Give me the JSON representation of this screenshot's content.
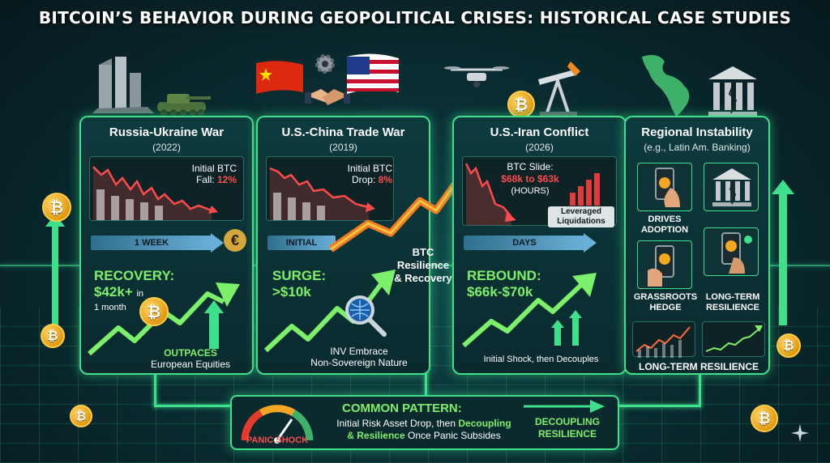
{
  "title": "BITCOIN’S BEHAVIOR DURING GEOPOLITICAL CRISES: HISTORICAL CASE STUDIES",
  "cards": [
    {
      "title": "Russia-Ukraine War",
      "subtitle": "(2022)",
      "drop_label": "Initial BTC",
      "drop_label2": "Fall:",
      "drop_value": "12%",
      "timebar": "1 WEEK",
      "currency_symbol": "€",
      "recovery_title": "RECOVERY:",
      "recovery_value": "$42k+",
      "recovery_in": "in",
      "recovery_period": "1 month",
      "footer_line1": "OUTPACES",
      "footer_line2": "European Equities"
    },
    {
      "title": "U.S.-China Trade War",
      "subtitle": "(2019)",
      "drop_label": "Initial BTC",
      "drop_label2": "Drop:",
      "drop_value": "8%",
      "timebar": "INITIAL",
      "surge_title": "SURGE:",
      "surge_value": ">$10k",
      "footer_line1": "INV Embrace",
      "footer_line2": "Non-Sovereign Nature"
    },
    {
      "title": "U.S.-Iran Conflict",
      "subtitle": "(2026)",
      "slide_label": "BTC Slide:",
      "slide_value": "$68k to $63k",
      "slide_period": "(HOURS)",
      "liq_line1": "Leveraged",
      "liq_line2": "Liquidations",
      "timebar": "DAYS",
      "rebound_title": "REBOUND:",
      "rebound_value": "$66k-$70k",
      "footer": "Initial Shock, then Decouples"
    },
    {
      "title": "Regional Instability",
      "subtitle": "(e.g., Latin Am. Banking)",
      "tiles": [
        "DRIVES ADOPTION",
        "",
        "GRASSROOTS HEDGE",
        "LONG-TERM RESILIENCE"
      ],
      "footer": "LONG-TERM RESILIENCE"
    }
  ],
  "center_label": {
    "line1": "BTC",
    "line2": "Resilience",
    "line3": "& Recovery"
  },
  "bottom": {
    "gauge_label": "PANIC SHOCK",
    "title": "COMMON PATTERN:",
    "text_a": "Initial Risk Asset Drop, then",
    "text_b": "Decoupling",
    "text_c": "& Resilience",
    "text_d": "Once Panic Subsides",
    "right_line1": "DECOUPLING",
    "right_line2": "RESILIENCE"
  },
  "coin_symbol": "₿",
  "colors": {
    "accent": "#3fe08c",
    "drop": "#ff4b4b",
    "rise": "#7df06b",
    "coin": "#f5a623",
    "timebar": "#6ab0d6"
  },
  "icons": [
    "ruins-icon",
    "tank-icon",
    "china-flag-icon",
    "handshake-icon",
    "gear-icon",
    "usa-flag-icon",
    "drone-icon",
    "oil-pump-icon",
    "map-icon",
    "bank-icon",
    "euro-icon",
    "magnifier-icon",
    "phone-icon"
  ]
}
